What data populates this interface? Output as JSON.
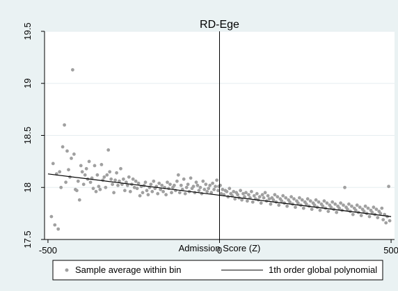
{
  "chart_data": {
    "type": "scatter",
    "title": "RD-Ege",
    "xlabel": "Admission Score (Z)",
    "ylabel": "",
    "xlim": [
      -510,
      510
    ],
    "ylim": [
      17.5,
      19.5
    ],
    "x_ticks": [
      -500,
      0,
      500
    ],
    "x_tick_labels": [
      "-500",
      "0",
      "500"
    ],
    "y_ticks": [
      17.5,
      18,
      18.5,
      19,
      19.5
    ],
    "y_tick_labels": [
      "17.5",
      "18",
      "18.5",
      "19",
      "19.5"
    ],
    "cutoff_x": 0,
    "grid": "horizontal",
    "legend_position": "bottom",
    "colors": {
      "points": "#a0a0a0",
      "line": "#000000",
      "background": "#eaf2f3",
      "plot": "#ffffff",
      "grid": "#e6eef0"
    },
    "series": [
      {
        "name": "Sample average within bin",
        "kind": "scatter",
        "points": [
          [
            -490,
            17.72
          ],
          [
            -485,
            18.23
          ],
          [
            -480,
            17.64
          ],
          [
            -475,
            18.13
          ],
          [
            -470,
            17.6
          ],
          [
            -466,
            18.15
          ],
          [
            -462,
            18.0
          ],
          [
            -457,
            18.39
          ],
          [
            -452,
            18.6
          ],
          [
            -448,
            18.05
          ],
          [
            -444,
            18.35
          ],
          [
            -440,
            18.17
          ],
          [
            -436,
            18.1
          ],
          [
            -432,
            18.28
          ],
          [
            -428,
            19.13
          ],
          [
            -424,
            18.32
          ],
          [
            -420,
            17.98
          ],
          [
            -416,
            17.97
          ],
          [
            -412,
            18.06
          ],
          [
            -408,
            17.88
          ],
          [
            -404,
            18.21
          ],
          [
            -400,
            18.15
          ],
          [
            -396,
            18.03
          ],
          [
            -392,
            18.12
          ],
          [
            -388,
            18.18
          ],
          [
            -384,
            18.08
          ],
          [
            -380,
            18.25
          ],
          [
            -376,
            18.05
          ],
          [
            -372,
            18.09
          ],
          [
            -368,
            17.99
          ],
          [
            -364,
            18.21
          ],
          [
            -360,
            17.96
          ],
          [
            -356,
            18.12
          ],
          [
            -352,
            18.01
          ],
          [
            -348,
            17.98
          ],
          [
            -344,
            18.22
          ],
          [
            -340,
            18.07
          ],
          [
            -336,
            18.1
          ],
          [
            -332,
            18.0
          ],
          [
            -328,
            18.12
          ],
          [
            -324,
            18.36
          ],
          [
            -320,
            18.15
          ],
          [
            -316,
            18.08
          ],
          [
            -312,
            18.03
          ],
          [
            -308,
            17.95
          ],
          [
            -304,
            18.07
          ],
          [
            -300,
            18.14
          ],
          [
            -296,
            18.02
          ],
          [
            -292,
            18.06
          ],
          [
            -288,
            18.18
          ],
          [
            -284,
            18.03
          ],
          [
            -280,
            18.08
          ],
          [
            -276,
            17.97
          ],
          [
            -272,
            18.05
          ],
          [
            -268,
            18.02
          ],
          [
            -264,
            18.1
          ],
          [
            -260,
            17.96
          ],
          [
            -256,
            18.03
          ],
          [
            -252,
            18.08
          ],
          [
            -248,
            18.0
          ],
          [
            -244,
            18.06
          ],
          [
            -240,
            17.99
          ],
          [
            -236,
            18.04
          ],
          [
            -232,
            17.92
          ],
          [
            -228,
            18.01
          ],
          [
            -224,
            17.95
          ],
          [
            -220,
            18.02
          ],
          [
            -216,
            18.05
          ],
          [
            -212,
            17.97
          ],
          [
            -208,
            17.93
          ],
          [
            -204,
            18.0
          ],
          [
            -200,
            18.03
          ],
          [
            -196,
            17.96
          ],
          [
            -192,
            18.06
          ],
          [
            -188,
            17.99
          ],
          [
            -184,
            18.01
          ],
          [
            -180,
            17.94
          ],
          [
            -176,
            18.04
          ],
          [
            -172,
            17.98
          ],
          [
            -168,
            18.02
          ],
          [
            -164,
            17.96
          ],
          [
            -160,
            18.0
          ],
          [
            -156,
            17.93
          ],
          [
            -152,
            18.05
          ],
          [
            -148,
            17.99
          ],
          [
            -144,
            18.03
          ],
          [
            -140,
            17.95
          ],
          [
            -136,
            18.0
          ],
          [
            -132,
            18.02
          ],
          [
            -128,
            17.97
          ],
          [
            -124,
            18.06
          ],
          [
            -120,
            18.12
          ],
          [
            -116,
            17.95
          ],
          [
            -112,
            18.02
          ],
          [
            -108,
            17.98
          ],
          [
            -104,
            18.08
          ],
          [
            -100,
            17.94
          ],
          [
            -96,
            18.0
          ],
          [
            -92,
            18.03
          ],
          [
            -88,
            17.96
          ],
          [
            -84,
            18.09
          ],
          [
            -80,
            17.99
          ],
          [
            -76,
            18.01
          ],
          [
            -72,
            17.95
          ],
          [
            -68,
            18.05
          ],
          [
            -64,
            18.02
          ],
          [
            -60,
            17.97
          ],
          [
            -56,
            18.0
          ],
          [
            -52,
            17.94
          ],
          [
            -48,
            18.06
          ],
          [
            -44,
            17.98
          ],
          [
            -40,
            18.03
          ],
          [
            -36,
            17.96
          ],
          [
            -32,
            17.99
          ],
          [
            -28,
            18.02
          ],
          [
            -24,
            17.95
          ],
          [
            -20,
            18.04
          ],
          [
            -16,
            17.98
          ],
          [
            -12,
            18.01
          ],
          [
            -8,
            18.07
          ],
          [
            -4,
            17.97
          ],
          [
            -2,
            18.01
          ],
          [
            2,
            18.02
          ],
          [
            5,
            17.94
          ],
          [
            9,
            17.98
          ],
          [
            13,
            17.93
          ],
          [
            17,
            17.97
          ],
          [
            21,
            17.96
          ],
          [
            25,
            17.91
          ],
          [
            29,
            17.99
          ],
          [
            33,
            17.94
          ],
          [
            37,
            17.92
          ],
          [
            41,
            17.96
          ],
          [
            45,
            17.89
          ],
          [
            49,
            17.95
          ],
          [
            53,
            17.93
          ],
          [
            57,
            17.9
          ],
          [
            61,
            17.97
          ],
          [
            65,
            17.88
          ],
          [
            69,
            17.94
          ],
          [
            73,
            17.91
          ],
          [
            77,
            17.95
          ],
          [
            81,
            17.87
          ],
          [
            85,
            17.93
          ],
          [
            89,
            17.9
          ],
          [
            93,
            17.96
          ],
          [
            97,
            17.86
          ],
          [
            101,
            17.92
          ],
          [
            105,
            17.89
          ],
          [
            109,
            17.94
          ],
          [
            113,
            17.88
          ],
          [
            117,
            17.91
          ],
          [
            121,
            17.85
          ],
          [
            125,
            17.93
          ],
          [
            129,
            17.9
          ],
          [
            133,
            17.95
          ],
          [
            137,
            17.87
          ],
          [
            141,
            17.92
          ],
          [
            145,
            17.89
          ],
          [
            149,
            17.84
          ],
          [
            153,
            17.9
          ],
          [
            157,
            17.88
          ],
          [
            161,
            17.93
          ],
          [
            165,
            17.86
          ],
          [
            169,
            17.91
          ],
          [
            173,
            17.83
          ],
          [
            177,
            17.89
          ],
          [
            181,
            17.87
          ],
          [
            185,
            17.92
          ],
          [
            189,
            17.85
          ],
          [
            193,
            17.9
          ],
          [
            197,
            17.82
          ],
          [
            201,
            17.88
          ],
          [
            205,
            17.86
          ],
          [
            209,
            17.91
          ],
          [
            213,
            17.84
          ],
          [
            217,
            17.89
          ],
          [
            221,
            17.81
          ],
          [
            225,
            17.87
          ],
          [
            229,
            17.85
          ],
          [
            233,
            17.9
          ],
          [
            237,
            17.83
          ],
          [
            241,
            17.88
          ],
          [
            245,
            17.8
          ],
          [
            249,
            17.86
          ],
          [
            253,
            17.84
          ],
          [
            257,
            17.89
          ],
          [
            261,
            17.82
          ],
          [
            265,
            17.87
          ],
          [
            269,
            17.79
          ],
          [
            273,
            17.85
          ],
          [
            277,
            17.83
          ],
          [
            281,
            17.88
          ],
          [
            285,
            17.81
          ],
          [
            289,
            17.86
          ],
          [
            293,
            17.78
          ],
          [
            297,
            17.84
          ],
          [
            301,
            17.82
          ],
          [
            305,
            17.87
          ],
          [
            309,
            17.8
          ],
          [
            313,
            17.85
          ],
          [
            317,
            17.77
          ],
          [
            321,
            17.83
          ],
          [
            325,
            17.81
          ],
          [
            329,
            17.86
          ],
          [
            333,
            17.79
          ],
          [
            337,
            17.84
          ],
          [
            341,
            17.76
          ],
          [
            345,
            17.82
          ],
          [
            349,
            17.8
          ],
          [
            353,
            17.85
          ],
          [
            357,
            17.78
          ],
          [
            361,
            17.83
          ],
          [
            365,
            18.0
          ],
          [
            369,
            17.81
          ],
          [
            373,
            17.79
          ],
          [
            377,
            17.84
          ],
          [
            381,
            17.77
          ],
          [
            385,
            17.82
          ],
          [
            389,
            17.74
          ],
          [
            393,
            17.8
          ],
          [
            397,
            17.78
          ],
          [
            401,
            17.83
          ],
          [
            405,
            17.76
          ],
          [
            409,
            17.81
          ],
          [
            413,
            17.73
          ],
          [
            417,
            17.79
          ],
          [
            421,
            17.77
          ],
          [
            425,
            17.82
          ],
          [
            429,
            17.75
          ],
          [
            433,
            17.8
          ],
          [
            437,
            17.72
          ],
          [
            441,
            17.78
          ],
          [
            445,
            17.76
          ],
          [
            449,
            17.81
          ],
          [
            453,
            17.74
          ],
          [
            457,
            17.79
          ],
          [
            461,
            17.71
          ],
          [
            465,
            17.77
          ],
          [
            469,
            17.75
          ],
          [
            473,
            17.8
          ],
          [
            477,
            17.69
          ],
          [
            481,
            17.74
          ],
          [
            485,
            17.66
          ],
          [
            489,
            17.72
          ],
          [
            493,
            18.01
          ],
          [
            496,
            17.68
          ]
        ]
      },
      {
        "name": "1th order global polynomial",
        "kind": "line",
        "points": [
          [
            -500,
            18.13
          ],
          [
            500,
            17.72
          ]
        ]
      }
    ]
  }
}
